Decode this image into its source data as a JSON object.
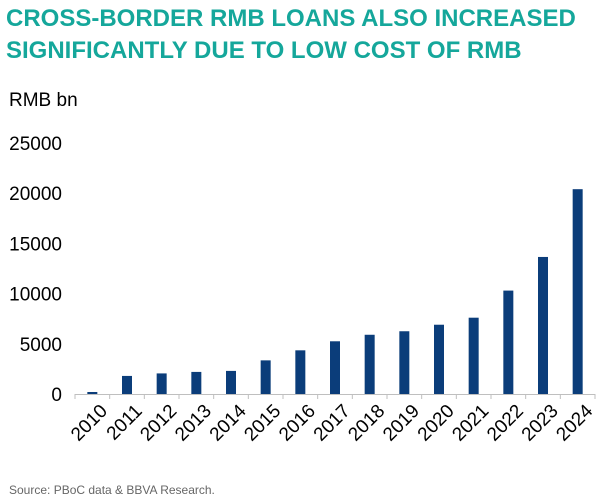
{
  "header": {
    "title_line1": "CROSS-BORDER RMB LOANS ALSO INCREASED",
    "title_line2": "SIGNIFICANTLY DUE TO LOW COST OF RMB"
  },
  "footer": {
    "source": "Source: PBoC data & BBVA Research."
  },
  "colors": {
    "title": "#15a79b",
    "bar": "#0b3d7a",
    "axis": "#bfbfbf"
  },
  "chart_data": {
    "type": "bar",
    "title": "CROSS-BORDER RMB LOANS ALSO INCREASED SIGNIFICANTLY DUE TO LOW COST OF RMB",
    "ylabel": "RMB bn",
    "xlabel": "",
    "ylim": [
      0,
      25000
    ],
    "yticks": [
      0,
      5000,
      10000,
      15000,
      20000,
      25000
    ],
    "categories": [
      "2010",
      "2011",
      "2012",
      "2013",
      "2014",
      "2015",
      "2016",
      "2017",
      "2018",
      "2019",
      "2020",
      "2021",
      "2022",
      "2023",
      "2024"
    ],
    "series": [
      {
        "name": "Cross-border RMB loans",
        "values": [
          200,
          1800,
          2050,
          2200,
          2300,
          3350,
          4350,
          5250,
          5900,
          6250,
          6900,
          7600,
          10300,
          13650,
          20400
        ]
      }
    ],
    "grid": false,
    "legend": "none"
  }
}
